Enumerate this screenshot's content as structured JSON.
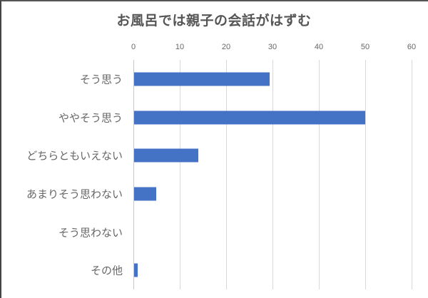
{
  "chart_data": {
    "type": "bar",
    "orientation": "horizontal",
    "title": "お風呂では親子の会話がはずむ",
    "categories": [
      "そう思う",
      "ややそう思う",
      "どちらともいえない",
      "あまりそう思わない",
      "そう思わない",
      "その他"
    ],
    "values": [
      29.4,
      50,
      14,
      4.9,
      0,
      0.9
    ],
    "xlabel": "",
    "ylabel": "",
    "xlim": [
      0,
      60
    ],
    "xticks": [
      "0",
      "10",
      "20",
      "30",
      "40",
      "50",
      "60"
    ],
    "xaxis_position": "top",
    "grid": true,
    "legend": false,
    "bar_color": "#4472c4"
  }
}
